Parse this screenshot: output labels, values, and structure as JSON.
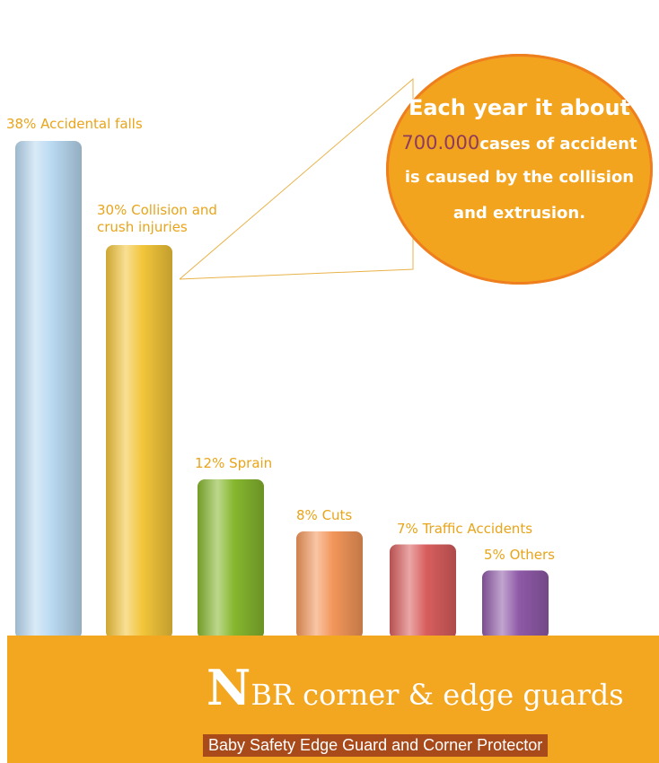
{
  "chart_data": {
    "type": "bar",
    "title": "",
    "xlabel": "",
    "ylabel": "",
    "ylim": [
      0,
      40
    ],
    "grid": false,
    "categories": [
      "Accidental falls",
      "Collision and crush injuries",
      "Sprain",
      "Cuts",
      "Traffic Accidents",
      "Others"
    ],
    "values": [
      38,
      30,
      12,
      8,
      7,
      5
    ],
    "labels": [
      "38% Accidental falls",
      "30%  Collision and crush injuries",
      "12% Sprain",
      "8% Cuts",
      "7% Traffic Accidents",
      "5% Others"
    ],
    "colors": [
      "#b9d9f1",
      "#f2c53a",
      "#86b72e",
      "#f3965a",
      "#d95e5e",
      "#8f5aa8"
    ]
  },
  "callout": {
    "line1": "Each year it about",
    "highlight": "700.000",
    "line2_rest": "cases of  accident",
    "line3": "is caused by the collision",
    "line4": "and extrusion.",
    "fill": "#f2a41f",
    "ring": "#ef7e1e"
  },
  "footer": {
    "brand_initial": "N",
    "brand_rest": "BR corner & edge guards",
    "tagline": "Baby Safety Edge Guard and Corner Protector",
    "background": "#f3a620"
  }
}
